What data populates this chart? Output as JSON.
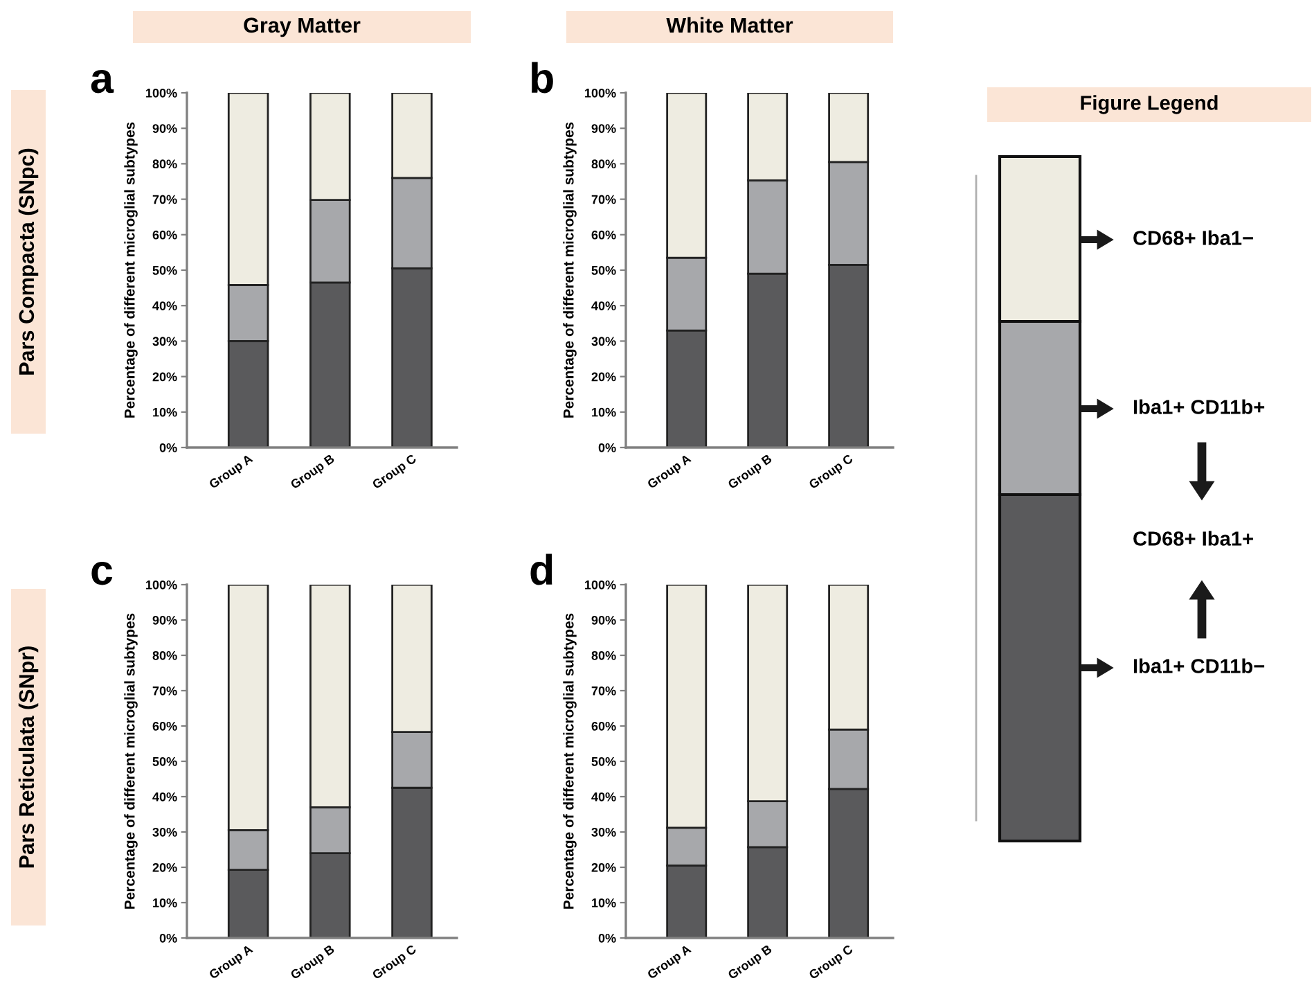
{
  "chart_data": [
    {
      "type": "bar",
      "stacked": true,
      "title": "a",
      "subtitle": "Gray Matter",
      "ylabel": "Percentage of different microglial subtypes",
      "categories": [
        "Group A",
        "Group B",
        "Group C"
      ],
      "series": [
        {
          "name": "Iba1+ CD11b−",
          "color": "#5a5a5c",
          "values": [
            30,
            46.5,
            50.5
          ]
        },
        {
          "name": "Iba1+ CD11b+",
          "color": "#a7a8ab",
          "values": [
            15.8,
            23.3,
            25.5
          ]
        },
        {
          "name": "CD68+ Iba1−",
          "color": "#eeece1",
          "values": [
            54.2,
            30.2,
            24
          ]
        }
      ],
      "ylim": [
        0,
        100
      ],
      "yticks": [
        {
          "value": 0,
          "label": "0%"
        },
        {
          "value": 10,
          "label": "10%"
        },
        {
          "value": 20,
          "label": "20%"
        },
        {
          "value": 30,
          "label": "30%"
        },
        {
          "value": 40,
          "label": "40%"
        },
        {
          "value": 50,
          "label": "50%"
        },
        {
          "value": 60,
          "label": "60%"
        },
        {
          "value": 70,
          "label": "70%"
        },
        {
          "value": 80,
          "label": "80%"
        },
        {
          "value": 90,
          "label": "90%"
        },
        {
          "value": 100,
          "label": "100%"
        }
      ],
      "annotations": [
        "Pars Compacta (SNpc)",
        "CD68+ Iba1+"
      ],
      "legend": "right",
      "legend_title": "Figure Legend",
      "grid": false
    },
    {
      "type": "bar",
      "stacked": true,
      "title": "b",
      "subtitle": "White Matter",
      "ylabel": "Percentage of different microglial subtypes",
      "categories": [
        "Group A",
        "Group B",
        "Group C"
      ],
      "series": [
        {
          "color": "#5a5a5c",
          "values": [
            33,
            49,
            51.5
          ]
        },
        {
          "color": "#a7a8ab",
          "values": [
            20.5,
            26.3,
            29
          ]
        },
        {
          "color": "#eeece1",
          "values": [
            46.5,
            24.7,
            19.5
          ]
        }
      ],
      "ylim": [
        0,
        100
      ],
      "yticks": [
        {
          "value": 0,
          "label": "0%"
        },
        {
          "value": 10,
          "label": "10%"
        },
        {
          "value": 20,
          "label": "20%"
        },
        {
          "value": 30,
          "label": "30%"
        },
        {
          "value": 40,
          "label": "40%"
        },
        {
          "value": 50,
          "label": "50%"
        },
        {
          "value": 60,
          "label": "60%"
        },
        {
          "value": 70,
          "label": "70%"
        },
        {
          "value": 80,
          "label": "80%"
        },
        {
          "value": 90,
          "label": "90%"
        },
        {
          "value": 100,
          "label": "100%"
        }
      ],
      "grid": false
    },
    {
      "type": "bar",
      "stacked": true,
      "title": "c",
      "ylabel": "Percentage of different microglial subtypes",
      "categories": [
        "Group A",
        "Group B",
        "Group C"
      ],
      "series": [
        {
          "color": "#5a5a5c",
          "values": [
            19.3,
            24,
            42.5
          ]
        },
        {
          "color": "#a7a8ab",
          "values": [
            11.2,
            13,
            15.8
          ]
        },
        {
          "color": "#eeece1",
          "values": [
            69.5,
            63,
            41.7
          ]
        }
      ],
      "ylim": [
        0,
        100
      ],
      "yticks": [
        {
          "value": 0,
          "label": "0%"
        },
        {
          "value": 10,
          "label": "10%"
        },
        {
          "value": 20,
          "label": "20%"
        },
        {
          "value": 30,
          "label": "30%"
        },
        {
          "value": 40,
          "label": "40%"
        },
        {
          "value": 50,
          "label": "50%"
        },
        {
          "value": 60,
          "label": "60%"
        },
        {
          "value": 70,
          "label": "70%"
        },
        {
          "value": 80,
          "label": "80%"
        },
        {
          "value": 90,
          "label": "90%"
        },
        {
          "value": 100,
          "label": "100%"
        }
      ],
      "annotations": [
        "Pars Reticulata (SNpr)"
      ],
      "grid": false
    },
    {
      "type": "bar",
      "stacked": true,
      "title": "d",
      "ylabel": "Percentage of different microglial subtypes",
      "categories": [
        "Group A",
        "Group B",
        "Group C"
      ],
      "series": [
        {
          "color": "#5a5a5c",
          "values": [
            20.5,
            25.7,
            42.2
          ]
        },
        {
          "color": "#a7a8ab",
          "values": [
            10.7,
            13,
            16.8
          ]
        },
        {
          "color": "#eeece1",
          "values": [
            68.8,
            61.3,
            41
          ]
        }
      ],
      "ylim": [
        0,
        100
      ],
      "yticks": [
        {
          "value": 0,
          "label": "0%"
        },
        {
          "value": 10,
          "label": "10%"
        },
        {
          "value": 20,
          "label": "20%"
        },
        {
          "value": 30,
          "label": "30%"
        },
        {
          "value": 40,
          "label": "40%"
        },
        {
          "value": 50,
          "label": "50%"
        },
        {
          "value": 60,
          "label": "60%"
        },
        {
          "value": 70,
          "label": "70%"
        },
        {
          "value": 80,
          "label": "80%"
        },
        {
          "value": 90,
          "label": "90%"
        },
        {
          "value": 100,
          "label": "100%"
        }
      ],
      "grid": false
    }
  ]
}
